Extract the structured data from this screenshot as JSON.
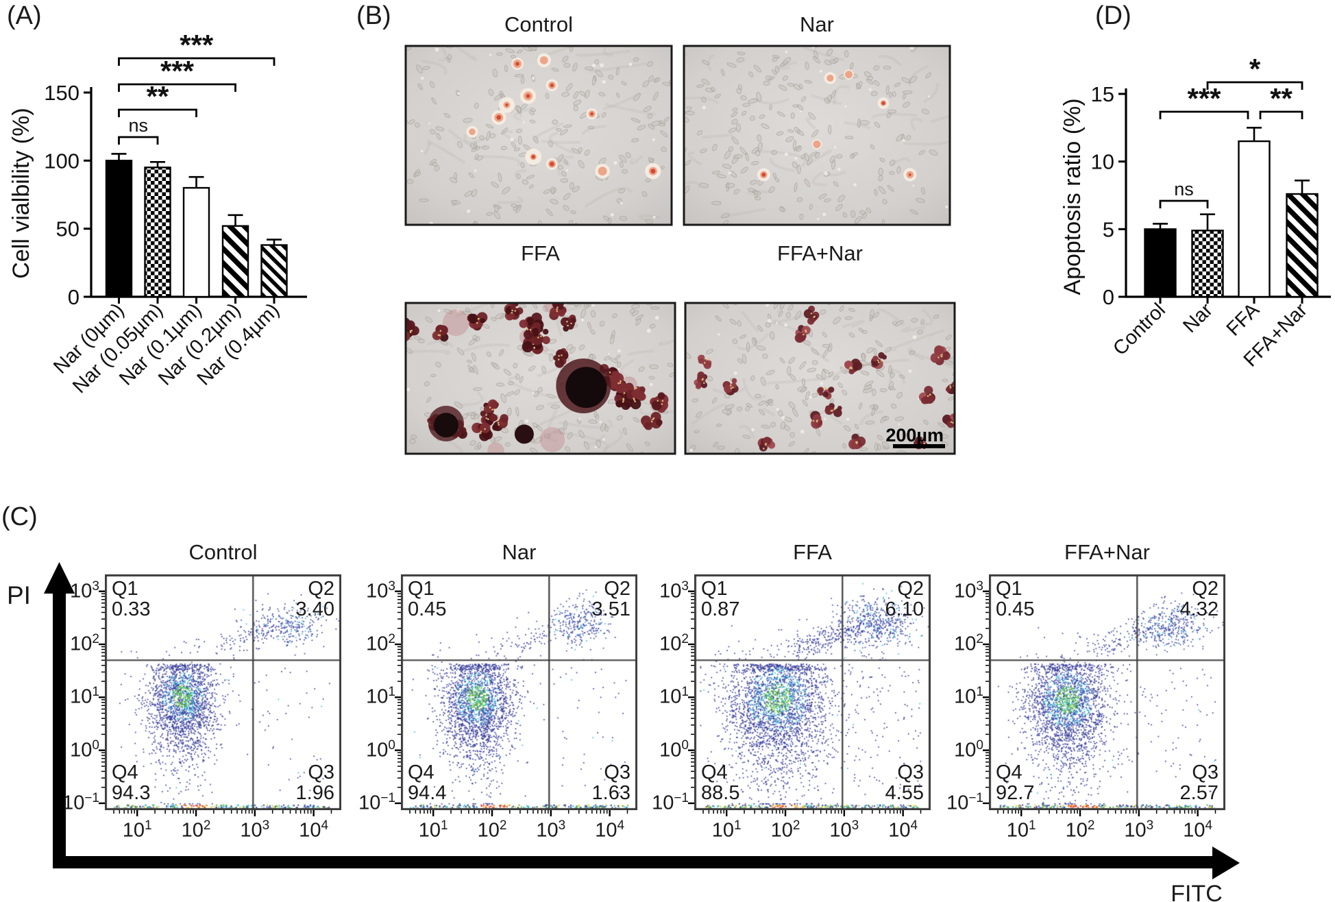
{
  "panels": {
    "a": {
      "label": "(A)",
      "y_axis_label": "Cell vialbility (%)",
      "y_ticks": [
        0,
        50,
        100,
        150
      ],
      "categories": [
        "Nar (0µm)",
        "Nar (0.05µm)",
        "Nar (0.1µm)",
        "Nar (0.2µm)",
        "Nar (0.4µm)"
      ],
      "values": [
        100,
        95,
        80,
        52,
        38
      ],
      "errors": [
        5,
        4,
        8,
        8,
        4
      ],
      "bar_styles": [
        "solid-black",
        "checkerboard",
        "white",
        "diagonal-hatch-bold",
        "diagonal-hatch"
      ],
      "significance": [
        {
          "from": 0,
          "to": 1,
          "label": "ns"
        },
        {
          "from": 0,
          "to": 2,
          "label": "**"
        },
        {
          "from": 0,
          "to": 3,
          "label": "***"
        },
        {
          "from": 0,
          "to": 4,
          "label": "***"
        }
      ]
    },
    "b": {
      "label": "(B)",
      "micrographs": [
        {
          "title": "Control",
          "stain_density": "sparse"
        },
        {
          "title": "Nar",
          "stain_density": "sparse"
        },
        {
          "title": "FFA",
          "stain_density": "heavy"
        },
        {
          "title": "FFA+Nar",
          "stain_density": "moderate",
          "scale_bar": "200µm"
        }
      ]
    },
    "c": {
      "label": "(C)",
      "y_axis_label": "PI",
      "x_axis_label": "FITC",
      "quadrant_names": [
        "Q1",
        "Q2",
        "Q3",
        "Q4"
      ],
      "x_tick_labels": [
        [
          "10",
          "1"
        ],
        [
          "10",
          "2"
        ],
        [
          "10",
          "3"
        ],
        [
          "10",
          "4"
        ]
      ],
      "y_tick_labels": [
        [
          "10",
          "−1"
        ],
        [
          "10",
          "0"
        ],
        [
          "10",
          "1"
        ],
        [
          "10",
          "2"
        ],
        [
          "10",
          "3"
        ]
      ],
      "plots": [
        {
          "title": "Control",
          "quadrants": {
            "Q1": "0.33",
            "Q2": "3.40",
            "Q3": "1.96",
            "Q4": "94.3"
          }
        },
        {
          "title": "Nar",
          "quadrants": {
            "Q1": "0.45",
            "Q2": "3.51",
            "Q3": "1.63",
            "Q4": "94.4"
          }
        },
        {
          "title": "FFA",
          "quadrants": {
            "Q1": "0.87",
            "Q2": "6.10",
            "Q3": "4.55",
            "Q4": "88.5"
          }
        },
        {
          "title": "FFA+Nar",
          "quadrants": {
            "Q1": "0.45",
            "Q2": "4.32",
            "Q3": "2.57",
            "Q4": "92.7"
          }
        }
      ]
    },
    "d": {
      "label": "(D)",
      "y_axis_label": "Apoptosis ratio (%)",
      "y_ticks": [
        0,
        5,
        10,
        15
      ],
      "categories": [
        "Control",
        "Nar",
        "FFA",
        "FFA+Nar"
      ],
      "values": [
        5.0,
        4.9,
        11.5,
        7.6
      ],
      "errors": [
        0.4,
        1.2,
        1.0,
        1.0
      ],
      "bar_styles": [
        "solid-black",
        "checkerboard",
        "white",
        "diagonal-hatch-bold"
      ],
      "significance": [
        {
          "from": 0,
          "to": 1,
          "label": "ns"
        },
        {
          "from": 0,
          "to": 2,
          "label": "***"
        },
        {
          "from": 2,
          "to": 3,
          "label": "**"
        },
        {
          "from": 1,
          "to": 3,
          "label": "*"
        }
      ]
    }
  },
  "chart_data": [
    {
      "type": "bar",
      "panel": "A",
      "categories": [
        "Nar (0µm)",
        "Nar (0.05µm)",
        "Nar (0.1µm)",
        "Nar (0.2µm)",
        "Nar (0.4µm)"
      ],
      "values": [
        100,
        95,
        80,
        52,
        38
      ],
      "errors": [
        5,
        4,
        8,
        8,
        4
      ],
      "xlabel": "",
      "ylabel": "Cell vialbility (%)",
      "ylim": [
        0,
        150
      ],
      "yticks": [
        0,
        50,
        100,
        150
      ],
      "grid": false,
      "significance": [
        {
          "pair": [
            "Nar (0µm)",
            "Nar (0.05µm)"
          ],
          "label": "ns"
        },
        {
          "pair": [
            "Nar (0µm)",
            "Nar (0.1µm)"
          ],
          "label": "**"
        },
        {
          "pair": [
            "Nar (0µm)",
            "Nar (0.2µm)"
          ],
          "label": "***"
        },
        {
          "pair": [
            "Nar (0µm)",
            "Nar (0.4µm)"
          ],
          "label": "***"
        }
      ]
    },
    {
      "type": "bar",
      "panel": "D",
      "categories": [
        "Control",
        "Nar",
        "FFA",
        "FFA+Nar"
      ],
      "values": [
        5.0,
        4.9,
        11.5,
        7.6
      ],
      "errors": [
        0.4,
        1.2,
        1.0,
        1.0
      ],
      "xlabel": "",
      "ylabel": "Apoptosis ratio (%)",
      "ylim": [
        0,
        15
      ],
      "yticks": [
        0,
        5,
        10,
        15
      ],
      "grid": false,
      "significance": [
        {
          "pair": [
            "Control",
            "Nar"
          ],
          "label": "ns"
        },
        {
          "pair": [
            "Control",
            "FFA"
          ],
          "label": "***"
        },
        {
          "pair": [
            "FFA",
            "FFA+Nar"
          ],
          "label": "**"
        },
        {
          "pair": [
            "Nar",
            "FFA+Nar"
          ],
          "label": "*"
        }
      ]
    },
    {
      "type": "scatter",
      "panel": "C",
      "subtype": "flow-cytometry-density",
      "xlabel": "FITC",
      "ylabel": "PI",
      "x_scale": "log10, decades 10^1 to 10^4",
      "y_scale": "log10, decades 10^-1 to 10^3",
      "quadrant_gates": {
        "x_divider": "10^3",
        "y_divider": "10^1.7"
      },
      "plots": [
        {
          "title": "Control",
          "Q1": 0.33,
          "Q2": 3.4,
          "Q3": 1.96,
          "Q4": 94.3
        },
        {
          "title": "Nar",
          "Q1": 0.45,
          "Q2": 3.51,
          "Q3": 1.63,
          "Q4": 94.4
        },
        {
          "title": "FFA",
          "Q1": 0.87,
          "Q2": 6.1,
          "Q3": 4.55,
          "Q4": 88.5
        },
        {
          "title": "FFA+Nar",
          "Q1": 0.45,
          "Q2": 4.32,
          "Q3": 2.57,
          "Q4": 92.7
        }
      ]
    }
  ]
}
